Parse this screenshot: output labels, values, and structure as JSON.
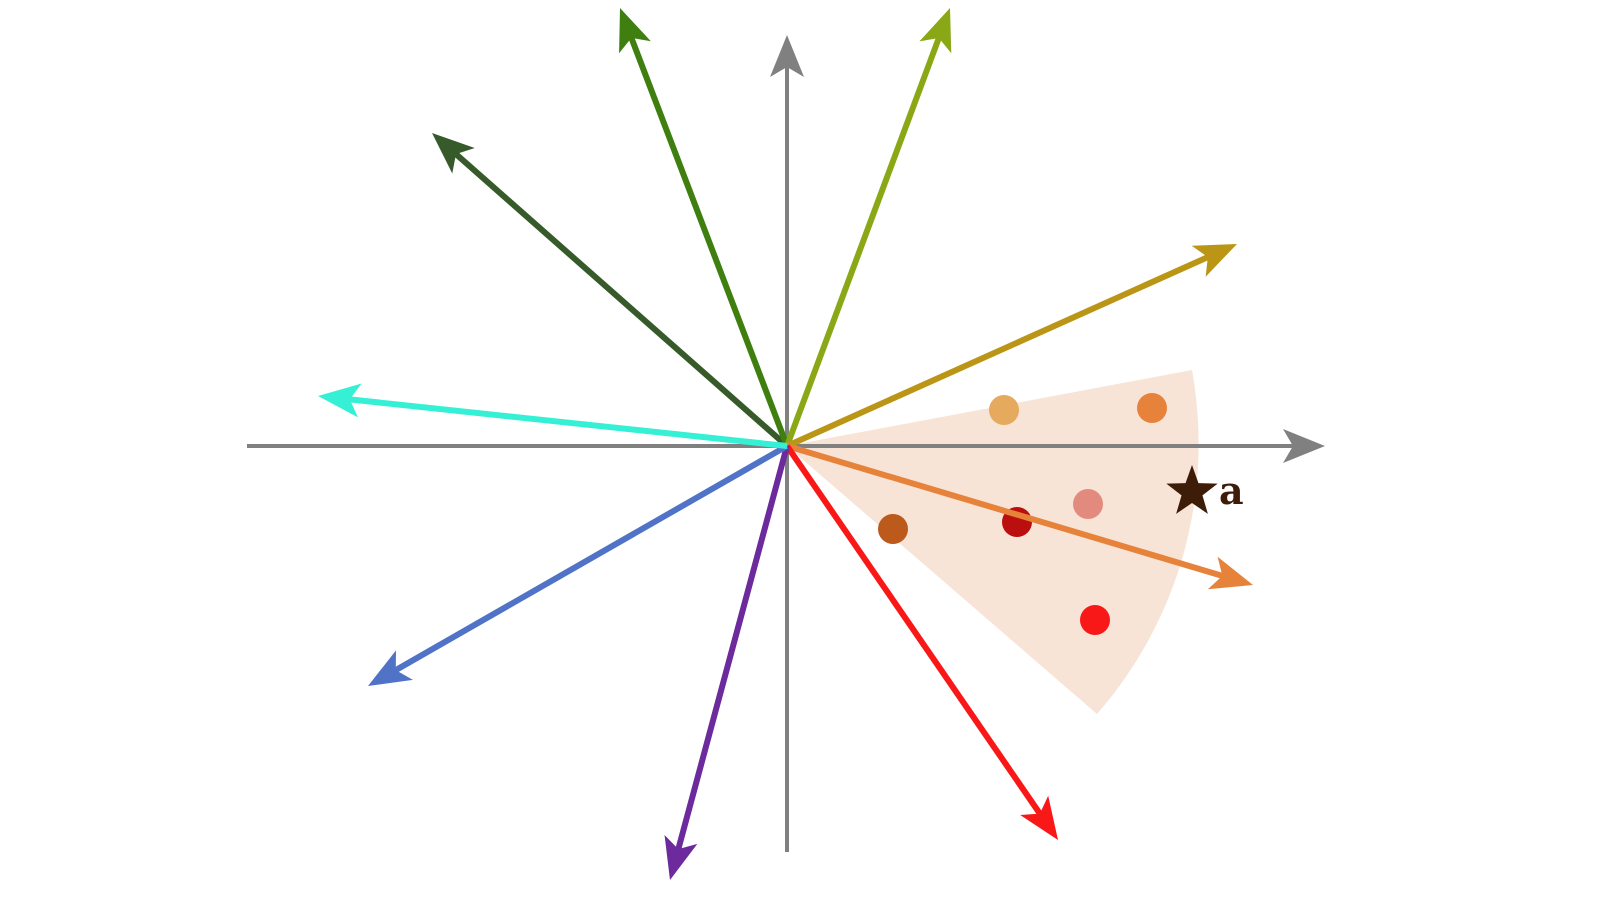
{
  "axis_color": "#808080",
  "wedge_color": "#f7e4d6",
  "vectors": [
    {
      "name": "dark-green",
      "color": "#365a2a"
    },
    {
      "name": "green",
      "color": "#3f7f10"
    },
    {
      "name": "yellow-green",
      "color": "#8aa815"
    },
    {
      "name": "gold",
      "color": "#bb9516"
    },
    {
      "name": "orange",
      "color": "#e7823a"
    },
    {
      "name": "red",
      "color": "#f91818"
    },
    {
      "name": "purple",
      "color": "#6c2a9c"
    },
    {
      "name": "blue",
      "color": "#5073c8"
    },
    {
      "name": "cyan",
      "color": "#36f0d6"
    }
  ],
  "points": [
    {
      "color": "#e5aa5e"
    },
    {
      "color": "#e7823a"
    },
    {
      "color": "#e38a7e"
    },
    {
      "color": "#bb0e0e"
    },
    {
      "color": "#bb5a1a"
    },
    {
      "color": "#f91818"
    }
  ],
  "star": {
    "color": "#3d1c08",
    "label": "a"
  }
}
